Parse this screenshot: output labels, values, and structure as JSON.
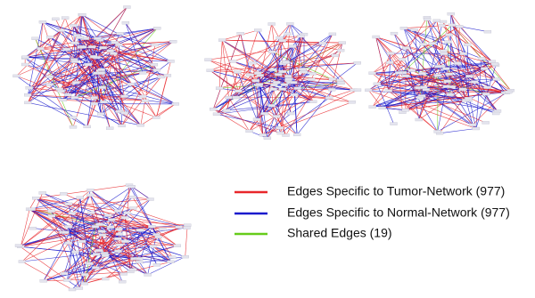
{
  "legend": [
    {
      "label": "Edges Specific to Tumor-Network (977)",
      "color": "#e8262a"
    },
    {
      "label": "Edges Specific to Normal-Network (977)",
      "color": "#1a1acd"
    },
    {
      "label": "Shared Edges (19)",
      "color": "#66cc1a"
    }
  ]
}
